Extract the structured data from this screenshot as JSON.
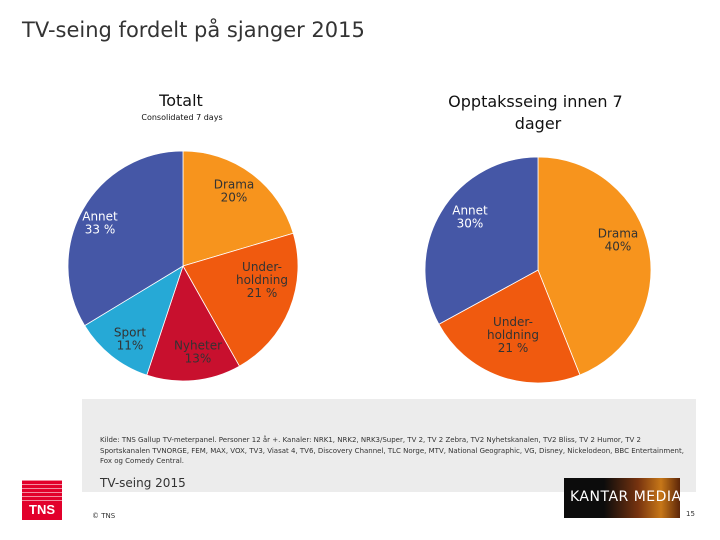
{
  "slide": {
    "title": "TV-seing fordelt på sjanger 2015",
    "source_text": "Kilde: TNS Gallup TV-meterpanel. Personer 12 år +. Kanaler: NRK1, NRK2, NRK3/Super, TV 2, TV 2 Zebra, TV2 Nyhetskanalen, TV2 Bliss, TV 2 Humor, TV 2 Sportskanalen TVNORGE, FEM, MAX, VOX, TV3, Viasat 4, TV6, Discovery Channel, TLC Norge, MTV, National Geographic, VG, Disney, Nickelodeon, BBC Entertainment, Fox og Comedy Central.",
    "footer_label": "TV-seing 2015",
    "copyright": "© TNS",
    "page_number": "15",
    "tns_logo_text": "TNS",
    "kantar_logo_text": "KANTAR MEDIA"
  },
  "chart_data": [
    {
      "type": "pie",
      "title": "Totalt",
      "subtitle": "Consolidated 7 days",
      "slices": [
        {
          "name": "Drama",
          "label_lines": [
            "Drama",
            "20%"
          ],
          "value": 20,
          "color": "#f7941d",
          "label_color": "#333333"
        },
        {
          "name": "Underholdning",
          "label_lines": [
            "Under-",
            "holdning",
            "21 %"
          ],
          "value": 21,
          "color": "#f05a0f",
          "label_color": "#333333"
        },
        {
          "name": "Nyheter",
          "label_lines": [
            "Nyheter",
            "13%"
          ],
          "value": 13,
          "color": "#c8102e",
          "label_color": "#333333"
        },
        {
          "name": "Sport",
          "label_lines": [
            "Sport",
            "11%"
          ],
          "value": 11,
          "color": "#26a9d6",
          "label_color": "#333333"
        },
        {
          "name": "Annet",
          "label_lines": [
            "Annet",
            "33 %"
          ],
          "value": 33,
          "color": "#4557a6",
          "label_color": "#ffffff"
        }
      ]
    },
    {
      "type": "pie",
      "title": "Opptaksseing innen 7 dager",
      "title_lines": [
        "Opptaksseing innen 7",
        "dager"
      ],
      "slices": [
        {
          "name": "Drama",
          "label_lines": [
            "Drama",
            "40%"
          ],
          "value": 40,
          "color": "#f7941d",
          "label_color": "#333333"
        },
        {
          "name": "Underholdning",
          "label_lines": [
            "Under-",
            "holdning",
            "21 %"
          ],
          "value": 21,
          "color": "#f05a0f",
          "label_color": "#333333"
        },
        {
          "name": "Annet",
          "label_lines": [
            "Annet",
            "30%"
          ],
          "value": 30,
          "color": "#4557a6",
          "label_color": "#ffffff"
        }
      ]
    }
  ]
}
